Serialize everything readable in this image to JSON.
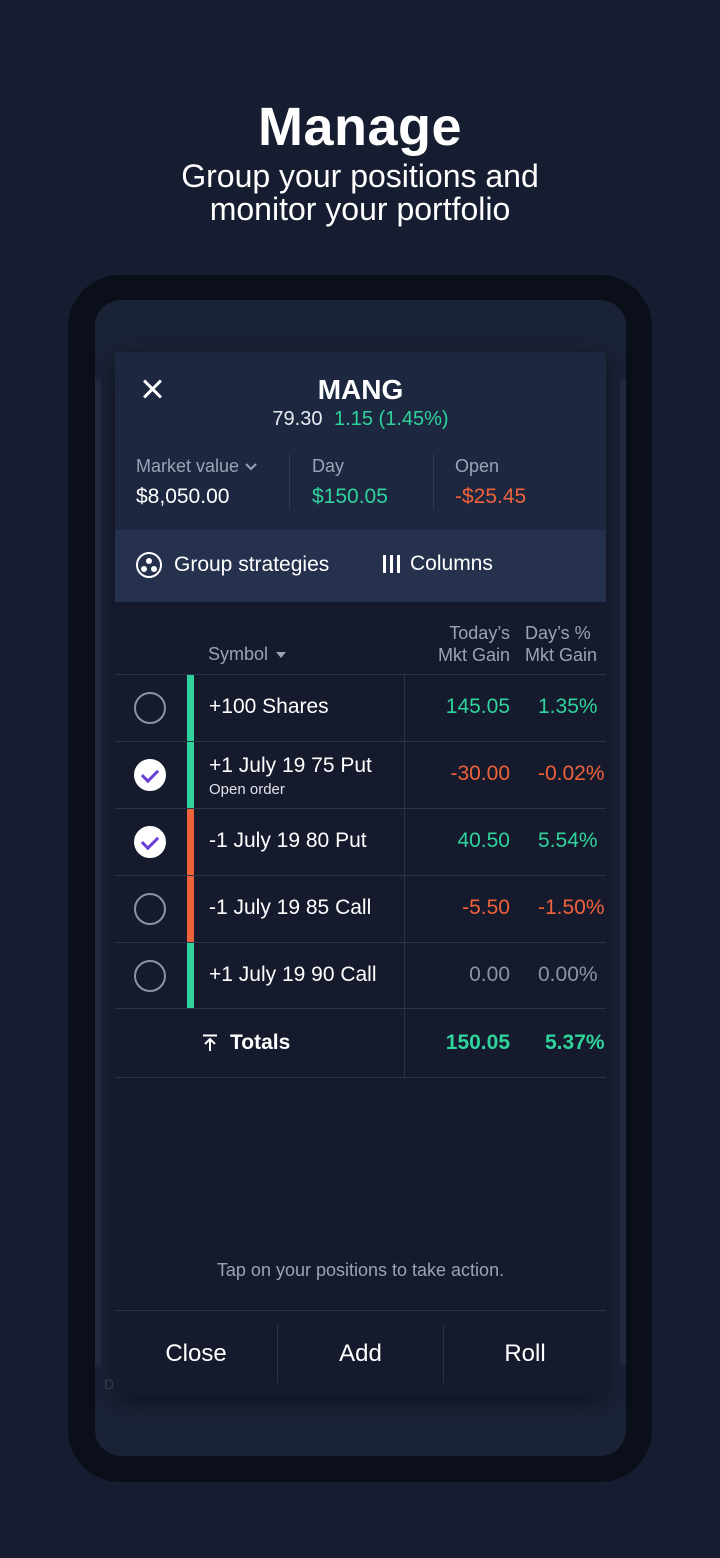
{
  "promo": {
    "headline": "Manage",
    "subline_1": "Group your positions and",
    "subline_2": "monitor your portfolio"
  },
  "background_letter": "D",
  "modal": {
    "ticker": "MANG",
    "price": "79.30",
    "change": "1.15 (1.45%)",
    "stats": [
      {
        "label": "Market value",
        "value": "$8,050.00",
        "tone": "neutral",
        "has_dropdown": true
      },
      {
        "label": "Day",
        "value": "$150.05",
        "tone": "positive"
      },
      {
        "label": "Open",
        "value": "-$25.45",
        "tone": "negative"
      }
    ],
    "toolbar": {
      "group_label": "Group strategies",
      "columns_label": "Columns"
    },
    "columns": {
      "symbol": "Symbol",
      "c1_line1": "Today’s",
      "c1_line2": "Mkt Gain",
      "c2_line1": "Day’s %",
      "c2_line2": "Mkt Gain"
    },
    "rows": [
      {
        "symbol": "+100 Shares",
        "sub": "",
        "v1": "145.05",
        "v2": "1.35%",
        "checked": false,
        "bar": "#2fd39b",
        "tone": "pos"
      },
      {
        "symbol": "+1 July 19 75 Put",
        "sub": "Open order",
        "v1": "-30.00",
        "v2": "-0.02%",
        "checked": true,
        "bar": "#2fd39b",
        "tone": "neg"
      },
      {
        "symbol": "-1 July 19 80 Put",
        "sub": "",
        "v1": "40.50",
        "v2": "5.54%",
        "checked": true,
        "bar": "#f0623b",
        "tone": "pos"
      },
      {
        "symbol": "-1 July 19 85 Call",
        "sub": "",
        "v1": "-5.50",
        "v2": "-1.50%",
        "checked": false,
        "bar": "#f0623b",
        "tone": "neg"
      },
      {
        "symbol": "+1 July 19 90 Call",
        "sub": "",
        "v1": "0.00",
        "v2": "0.00%",
        "checked": false,
        "bar": "#2fd39b",
        "tone": "zero"
      }
    ],
    "totals": {
      "label": "Totals",
      "v1": "150.05",
      "v2": "5.37%"
    },
    "hint": "Tap on your positions to take action.",
    "footer": {
      "close": "Close",
      "add": "Add",
      "roll": "Roll"
    }
  },
  "colors": {
    "positive": "#2fd39b",
    "negative": "#f0623b",
    "check_accent": "#6a3fd6",
    "background": "#161d30"
  }
}
